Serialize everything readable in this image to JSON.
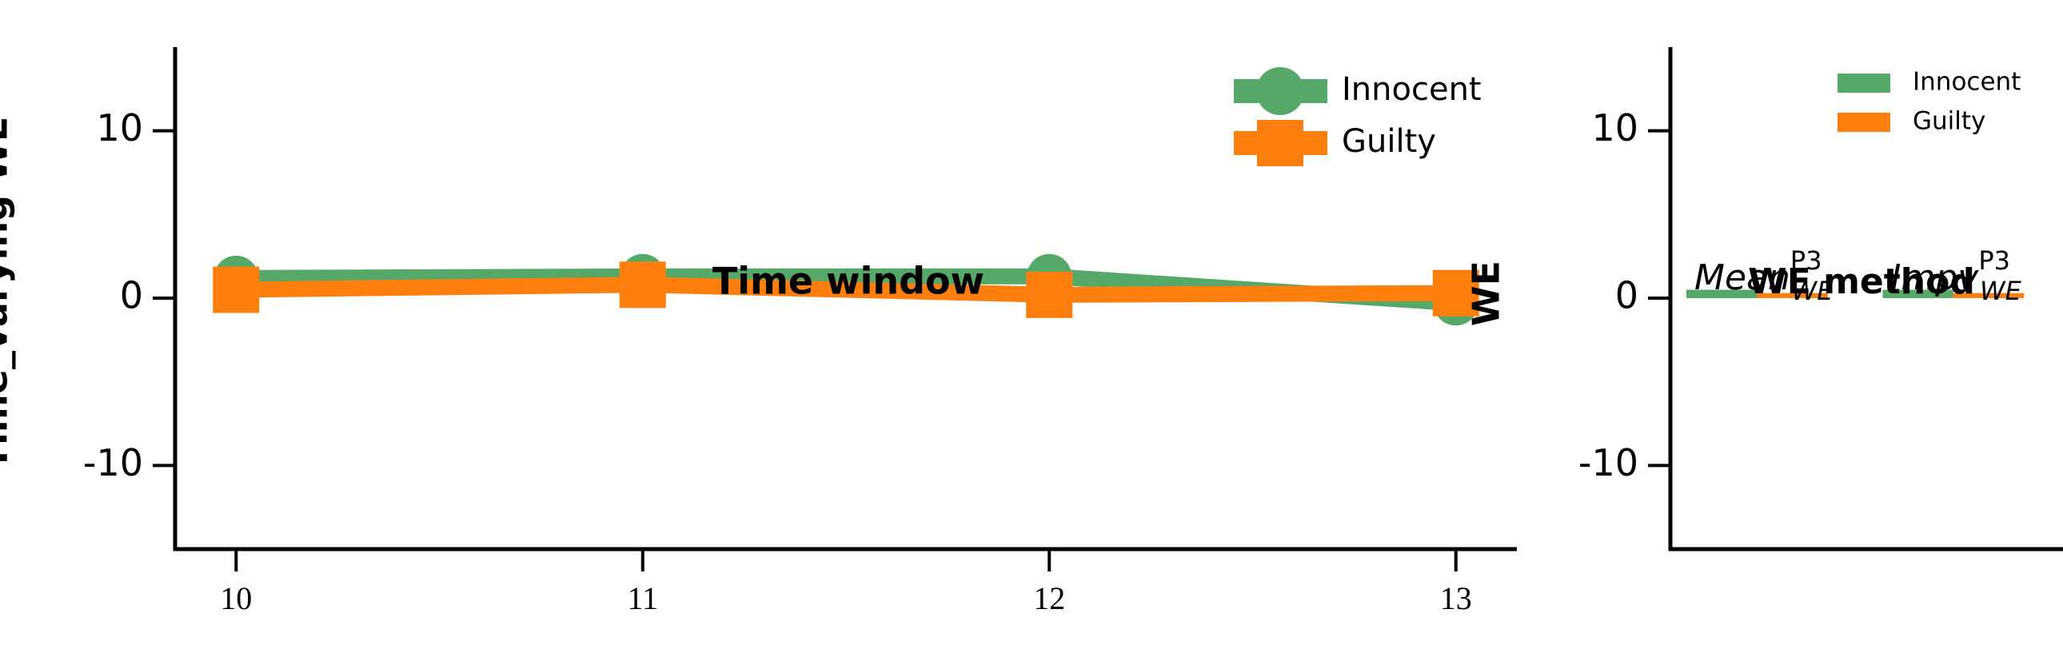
{
  "chart_data": [
    {
      "type": "line",
      "ylabel": "Time_varying WE",
      "xlabel": "Time window",
      "side_label": "WE",
      "x": [
        10,
        11,
        12,
        13
      ],
      "xlim": [
        9.85,
        13.15
      ],
      "xticks": [
        10,
        11,
        12,
        13
      ],
      "ylim": [
        -15,
        15
      ],
      "yticks": [
        -10,
        0,
        10
      ],
      "legend": "upper right",
      "series": [
        {
          "name": "Innocent",
          "color": "#55a868",
          "marker": "circle",
          "values": [
            1.2,
            1.3,
            1.3,
            -0.3
          ]
        },
        {
          "name": "Guilty",
          "color": "#ff7f0e",
          "marker": "square",
          "values": [
            0.5,
            0.8,
            0.2,
            0.3
          ]
        }
      ]
    },
    {
      "type": "bar",
      "xlabel": "WE method",
      "categories": [
        {
          "base": "Mean",
          "sup": "P3",
          "sub": "WE"
        },
        {
          "base": "Impv",
          "sup": "P3",
          "sub": "WE"
        }
      ],
      "ylim": [
        -15,
        15
      ],
      "yticks": [
        -10,
        0,
        10
      ],
      "legend": "upper right",
      "series": [
        {
          "name": "Innocent",
          "color": "#55a868",
          "values": [
            0.5,
            0.5
          ]
        },
        {
          "name": "Guilty",
          "color": "#ff7f0e",
          "values": [
            0.3,
            0.3
          ]
        }
      ]
    }
  ]
}
